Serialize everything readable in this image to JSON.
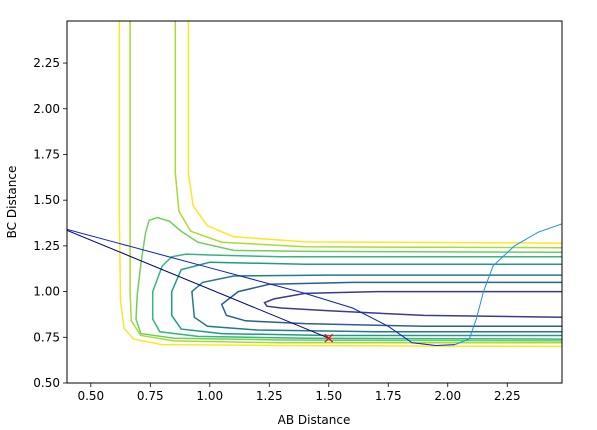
{
  "chart_data": {
    "type": "line",
    "title": "",
    "xlabel": "AB Distance",
    "ylabel": "BC Distance",
    "xlim": [
      0.4,
      2.48
    ],
    "ylim": [
      0.5,
      2.48
    ],
    "xticks": [
      0.5,
      0.75,
      1.0,
      1.25,
      1.5,
      1.75,
      2.0,
      2.25
    ],
    "xtick_labels": [
      "0.50",
      "0.75",
      "1.00",
      "1.25",
      "1.50",
      "1.75",
      "2.00",
      "2.25"
    ],
    "yticks": [
      0.5,
      0.75,
      1.0,
      1.25,
      1.5,
      1.75,
      2.0,
      2.25
    ],
    "ytick_labels": [
      "0.50",
      "0.75",
      "1.00",
      "1.25",
      "1.50",
      "1.75",
      "2.00",
      "2.25"
    ],
    "grid": false,
    "legend": false,
    "contours": [
      {
        "color": "#3b3b8f",
        "points": [
          [
            2.48,
            1.0
          ],
          [
            1.7,
            1.0
          ],
          [
            1.4,
            0.99
          ],
          [
            1.27,
            0.96
          ],
          [
            1.23,
            0.94
          ],
          [
            1.24,
            0.92
          ],
          [
            1.3,
            0.91
          ],
          [
            1.5,
            0.895
          ],
          [
            1.9,
            0.87
          ],
          [
            2.48,
            0.86
          ]
        ]
      },
      {
        "color": "#2c5f8e",
        "points": [
          [
            2.48,
            1.05
          ],
          [
            1.6,
            1.05
          ],
          [
            1.25,
            1.04
          ],
          [
            1.12,
            1.0
          ],
          [
            1.05,
            0.93
          ],
          [
            1.07,
            0.87
          ],
          [
            1.15,
            0.84
          ],
          [
            1.4,
            0.825
          ],
          [
            1.9,
            0.81
          ],
          [
            2.48,
            0.81
          ]
        ]
      },
      {
        "color": "#257a8a",
        "points": [
          [
            2.48,
            1.09
          ],
          [
            1.5,
            1.09
          ],
          [
            1.1,
            1.085
          ],
          [
            0.97,
            1.05
          ],
          [
            0.925,
            1.0
          ],
          [
            0.935,
            0.86
          ],
          [
            0.99,
            0.81
          ],
          [
            1.2,
            0.79
          ],
          [
            1.7,
            0.78
          ],
          [
            2.48,
            0.78
          ]
        ]
      },
      {
        "color": "#23988a",
        "points": [
          [
            2.48,
            1.15
          ],
          [
            1.4,
            1.15
          ],
          [
            1.0,
            1.16
          ],
          [
            0.88,
            1.12
          ],
          [
            0.84,
            1.0
          ],
          [
            0.84,
            0.87
          ],
          [
            0.88,
            0.795
          ],
          [
            1.05,
            0.77
          ],
          [
            1.5,
            0.76
          ],
          [
            2.48,
            0.76
          ]
        ]
      },
      {
        "color": "#37b57a",
        "points": [
          [
            2.48,
            1.19
          ],
          [
            1.3,
            1.19
          ],
          [
            1.0,
            1.2
          ],
          [
            0.9,
            1.205
          ],
          [
            0.84,
            1.19
          ],
          [
            0.8,
            1.14
          ],
          [
            0.76,
            1.0
          ],
          [
            0.76,
            0.85
          ],
          [
            0.79,
            0.78
          ],
          [
            0.95,
            0.755
          ],
          [
            1.4,
            0.745
          ],
          [
            2.48,
            0.74
          ]
        ]
      },
      {
        "color": "#6dcf5c",
        "points": [
          [
            2.48,
            1.215
          ],
          [
            1.4,
            1.22
          ],
          [
            1.1,
            1.225
          ],
          [
            0.95,
            1.27
          ],
          [
            0.88,
            1.33
          ],
          [
            0.83,
            1.385
          ],
          [
            0.78,
            1.405
          ],
          [
            0.745,
            1.39
          ],
          [
            0.73,
            1.32
          ],
          [
            0.71,
            1.15
          ],
          [
            0.695,
            0.98
          ],
          [
            0.69,
            0.85
          ],
          [
            0.71,
            0.77
          ],
          [
            0.85,
            0.745
          ],
          [
            1.3,
            0.735
          ],
          [
            2.48,
            0.73
          ]
        ]
      },
      {
        "color": "#a8db34",
        "points": [
          [
            0.855,
            2.48
          ],
          [
            0.855,
            1.65
          ],
          [
            0.87,
            1.44
          ],
          [
            0.92,
            1.33
          ],
          [
            1.05,
            1.27
          ],
          [
            1.4,
            1.245
          ],
          [
            2.48,
            1.24
          ]
        ]
      },
      {
        "color": "#a8db34",
        "points": [
          [
            0.665,
            2.48
          ],
          [
            0.665,
            1.4
          ],
          [
            0.665,
            1.0
          ],
          [
            0.67,
            0.84
          ],
          [
            0.71,
            0.76
          ],
          [
            0.85,
            0.73
          ],
          [
            1.3,
            0.72
          ],
          [
            2.48,
            0.72
          ]
        ]
      },
      {
        "color": "#fde725",
        "points": [
          [
            0.91,
            2.48
          ],
          [
            0.91,
            1.65
          ],
          [
            0.93,
            1.47
          ],
          [
            0.99,
            1.36
          ],
          [
            1.1,
            1.3
          ],
          [
            1.4,
            1.272
          ],
          [
            2.48,
            1.265
          ]
        ]
      },
      {
        "color": "#fde725",
        "points": [
          [
            0.62,
            2.48
          ],
          [
            0.62,
            1.4
          ],
          [
            0.625,
            0.95
          ],
          [
            0.64,
            0.8
          ],
          [
            0.68,
            0.74
          ],
          [
            0.8,
            0.71
          ],
          [
            1.3,
            0.705
          ],
          [
            2.48,
            0.7
          ]
        ]
      }
    ],
    "series": [
      {
        "color": "#000080",
        "points": [
          [
            0.4,
            1.335
          ],
          [
            1.5,
            0.745
          ]
        ]
      },
      {
        "color": "#0a1fd0",
        "points": [
          [
            0.4,
            1.34
          ],
          [
            0.6,
            1.27
          ],
          [
            0.8,
            1.2
          ],
          [
            1.0,
            1.13
          ],
          [
            1.2,
            1.06
          ],
          [
            1.4,
            0.99
          ],
          [
            1.6,
            0.91
          ],
          [
            1.75,
            0.81
          ],
          [
            1.85,
            0.72
          ],
          [
            1.95,
            0.705
          ],
          [
            2.03,
            0.71
          ]
        ]
      },
      {
        "color": "#1f8fe8",
        "points": [
          [
            2.03,
            0.71
          ],
          [
            2.09,
            0.74
          ],
          [
            2.12,
            0.85
          ],
          [
            2.15,
            1.0
          ],
          [
            2.19,
            1.14
          ],
          [
            2.28,
            1.25
          ],
          [
            2.38,
            1.325
          ],
          [
            2.48,
            1.37
          ]
        ]
      }
    ],
    "markers": [
      {
        "x": 1.5,
        "y": 0.745,
        "symbol": "x",
        "color": "#ff0000"
      }
    ]
  }
}
